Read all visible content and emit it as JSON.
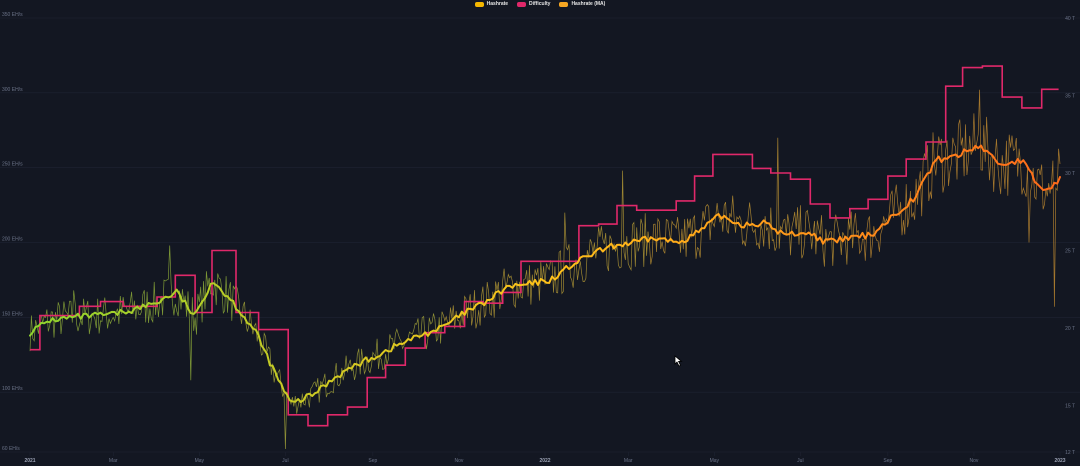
{
  "legend": {
    "hashrate": "Hashrate",
    "difficulty": "Difficulty",
    "hashrate_ma": "Hashrate (MA)"
  },
  "colors": {
    "background": "#131722",
    "grid": "#1e2332",
    "tick_text": "#6b7388",
    "hashrate": "#f5b700",
    "difficulty": "#e0286a",
    "hashrate_ma": "#f5a623",
    "ma_gradient_start": "#8fd42e",
    "ma_gradient_mid": "#ffc21a",
    "ma_gradient_end": "#ff6a1a"
  },
  "chart_data": {
    "type": "line",
    "title": "",
    "xlabel": "",
    "ylabel": "",
    "x_range": [
      "2021-01-01",
      "2023-01-01"
    ],
    "x_ticks": [
      {
        "date": "2021-01-01",
        "label": "2021"
      },
      {
        "date": "2021-03-01",
        "label": "Mar"
      },
      {
        "date": "2021-05-01",
        "label": "May"
      },
      {
        "date": "2021-07-01",
        "label": "Jul"
      },
      {
        "date": "2021-09-01",
        "label": "Sep"
      },
      {
        "date": "2021-11-01",
        "label": "Nov"
      },
      {
        "date": "2022-01-01",
        "label": "2022"
      },
      {
        "date": "2022-03-01",
        "label": "Mar"
      },
      {
        "date": "2022-05-01",
        "label": "May"
      },
      {
        "date": "2022-07-01",
        "label": "Jul"
      },
      {
        "date": "2022-09-01",
        "label": "Sep"
      },
      {
        "date": "2022-11-01",
        "label": "Nov"
      },
      {
        "date": "2023-01-01",
        "label": "2023"
      }
    ],
    "y_left": {
      "unit": "EH/s",
      "range": [
        50,
        350
      ],
      "ticks": [
        {
          "value": 60,
          "label": "60 EH/s"
        },
        {
          "value": 100,
          "label": "100 EH/s"
        },
        {
          "value": 150,
          "label": "150 EH/s"
        },
        {
          "value": 200,
          "label": "200 EH/s"
        },
        {
          "value": 250,
          "label": "250 EH/s"
        },
        {
          "value": 300,
          "label": "300 EH/s"
        },
        {
          "value": 350,
          "label": "350 EH/s"
        }
      ]
    },
    "y_right": {
      "unit": "T",
      "range": [
        12,
        40
      ],
      "ticks": [
        {
          "value": 12,
          "label": "12 T"
        },
        {
          "value": 15,
          "label": "15 T"
        },
        {
          "value": 20,
          "label": "20 T"
        },
        {
          "value": 25,
          "label": "25 T"
        },
        {
          "value": 30,
          "label": "30 T"
        },
        {
          "value": 35,
          "label": "35 T"
        },
        {
          "value": 40,
          "label": "40 T"
        }
      ]
    },
    "series": [
      {
        "name": "Difficulty",
        "axis": "right",
        "shape": "step",
        "points": [
          [
            "2021-01-01",
            18.6
          ],
          [
            "2021-01-08",
            20.8
          ],
          [
            "2021-02-05",
            21.4
          ],
          [
            "2021-02-20",
            21.7
          ],
          [
            "2021-03-08",
            21.4
          ],
          [
            "2021-03-18",
            21.4
          ],
          [
            "2021-04-01",
            22.0
          ],
          [
            "2021-04-14",
            23.4
          ],
          [
            "2021-04-28",
            21.0
          ],
          [
            "2021-05-10",
            25.0
          ],
          [
            "2021-05-27",
            21.0
          ],
          [
            "2021-06-12",
            19.9
          ],
          [
            "2021-07-03",
            14.4
          ],
          [
            "2021-07-17",
            13.7
          ],
          [
            "2021-07-31",
            14.4
          ],
          [
            "2021-08-14",
            14.9
          ],
          [
            "2021-08-28",
            16.8
          ],
          [
            "2021-09-10",
            17.6
          ],
          [
            "2021-09-24",
            18.7
          ],
          [
            "2021-10-08",
            19.7
          ],
          [
            "2021-10-22",
            20.1
          ],
          [
            "2021-11-05",
            21.7
          ],
          [
            "2021-11-18",
            21.6
          ],
          [
            "2021-12-02",
            22.3
          ],
          [
            "2021-12-15",
            24.3
          ],
          [
            "2021-12-29",
            24.3
          ],
          [
            "2022-01-12",
            24.3
          ],
          [
            "2022-01-25",
            26.6
          ],
          [
            "2022-02-08",
            26.7
          ],
          [
            "2022-02-21",
            27.9
          ],
          [
            "2022-03-07",
            27.6
          ],
          [
            "2022-03-21",
            27.6
          ],
          [
            "2022-04-04",
            28.2
          ],
          [
            "2022-04-17",
            29.8
          ],
          [
            "2022-04-30",
            31.2
          ],
          [
            "2022-05-14",
            31.2
          ],
          [
            "2022-05-28",
            30.3
          ],
          [
            "2022-06-10",
            30.0
          ],
          [
            "2022-06-24",
            29.6
          ],
          [
            "2022-07-08",
            28.0
          ],
          [
            "2022-07-22",
            27.1
          ],
          [
            "2022-08-05",
            27.7
          ],
          [
            "2022-08-18",
            28.3
          ],
          [
            "2022-09-01",
            29.8
          ],
          [
            "2022-09-14",
            30.9
          ],
          [
            "2022-09-28",
            32.0
          ],
          [
            "2022-10-12",
            35.6
          ],
          [
            "2022-10-24",
            36.8
          ],
          [
            "2022-11-07",
            36.9
          ],
          [
            "2022-11-21",
            34.9
          ],
          [
            "2022-12-05",
            34.2
          ],
          [
            "2022-12-19",
            35.4
          ],
          [
            "2022-12-31",
            35.4
          ]
        ]
      },
      {
        "name": "Hashrate (MA)",
        "axis": "left",
        "shape": "line",
        "points": [
          [
            "2021-01-01",
            140
          ],
          [
            "2021-01-15",
            148
          ],
          [
            "2021-02-01",
            150
          ],
          [
            "2021-02-15",
            151
          ],
          [
            "2021-03-01",
            152
          ],
          [
            "2021-03-15",
            155
          ],
          [
            "2021-04-01",
            160
          ],
          [
            "2021-04-15",
            167
          ],
          [
            "2021-04-28",
            150
          ],
          [
            "2021-05-10",
            175
          ],
          [
            "2021-05-25",
            160
          ],
          [
            "2021-06-10",
            140
          ],
          [
            "2021-06-25",
            110
          ],
          [
            "2021-07-05",
            92
          ],
          [
            "2021-07-20",
            98
          ],
          [
            "2021-08-05",
            110
          ],
          [
            "2021-08-20",
            118
          ],
          [
            "2021-09-05",
            125
          ],
          [
            "2021-09-20",
            132
          ],
          [
            "2021-10-05",
            138
          ],
          [
            "2021-10-20",
            143
          ],
          [
            "2021-11-05",
            153
          ],
          [
            "2021-11-20",
            160
          ],
          [
            "2021-12-05",
            170
          ],
          [
            "2021-12-20",
            172
          ],
          [
            "2022-01-05",
            175
          ],
          [
            "2022-01-20",
            185
          ],
          [
            "2022-02-05",
            193
          ],
          [
            "2022-02-20",
            198
          ],
          [
            "2022-03-05",
            200
          ],
          [
            "2022-03-20",
            203
          ],
          [
            "2022-04-05",
            200
          ],
          [
            "2022-04-20",
            207
          ],
          [
            "2022-05-05",
            218
          ],
          [
            "2022-05-20",
            212
          ],
          [
            "2022-06-05",
            213
          ],
          [
            "2022-06-20",
            205
          ],
          [
            "2022-07-05",
            207
          ],
          [
            "2022-07-20",
            200
          ],
          [
            "2022-08-05",
            203
          ],
          [
            "2022-08-20",
            205
          ],
          [
            "2022-09-05",
            218
          ],
          [
            "2022-09-20",
            230
          ],
          [
            "2022-10-05",
            255
          ],
          [
            "2022-10-20",
            258
          ],
          [
            "2022-11-05",
            265
          ],
          [
            "2022-11-20",
            252
          ],
          [
            "2022-12-05",
            255
          ],
          [
            "2022-12-15",
            240
          ],
          [
            "2022-12-22",
            234
          ],
          [
            "2022-12-31",
            242
          ]
        ]
      },
      {
        "name": "Hashrate",
        "axis": "left",
        "shape": "line",
        "noise_peaks": [
          [
            "2021-02-01",
            168
          ],
          [
            "2021-04-10",
            198
          ],
          [
            "2021-04-25",
            108
          ],
          [
            "2021-07-01",
            62
          ],
          [
            "2022-01-15",
            220
          ],
          [
            "2022-02-25",
            248
          ],
          [
            "2022-06-15",
            270
          ],
          [
            "2022-11-05",
            302
          ],
          [
            "2022-12-10",
            200
          ],
          [
            "2022-12-28",
            157
          ]
        ]
      }
    ],
    "grid": true,
    "legend_position": "top-center"
  }
}
